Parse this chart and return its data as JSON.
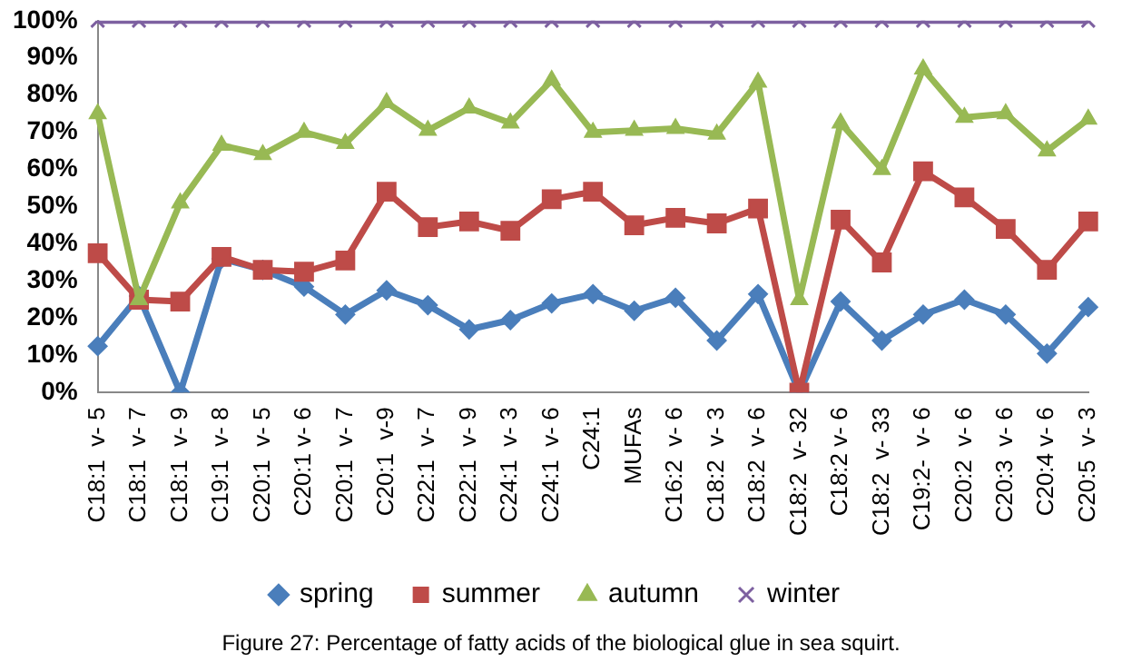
{
  "chart_data": {
    "type": "line",
    "title": "Figure 27: Percentage of fatty acids of the biological glue in sea squirt.",
    "categories": [
      "C18:1  v- 5",
      "C18:1  v- 7",
      "C18:1  v- 9",
      "C19:1  v- 8",
      "C20:1  v- 5",
      "C20:1 v- 6",
      "C20:1  v- 7",
      "C20:1  v-9",
      "C22:1  v- 7",
      "C22:1  v- 9",
      "C24:1  v- 3",
      "C24:1  v- 6",
      "C24:1",
      "MUFAs",
      "C16:2  v- 6",
      "C18:2  v- 3",
      "C18:2  v- 6",
      "C18:2  v- 32",
      "C18:2 v- 6",
      "C18:2  v- 33",
      "C19:2-  v- 6",
      "C20:2  v- 6",
      "C20:3  v- 6",
      "C20:4 v- 6",
      "C20:5  v- 3"
    ],
    "series": [
      {
        "name": "spring",
        "color": "#4a7ebb",
        "marker": "diamond",
        "values": [
          12.5,
          26,
          0,
          36,
          33,
          28.5,
          21,
          27.5,
          23.5,
          17,
          19.5,
          24,
          26.5,
          22,
          25.5,
          14,
          26.5,
          0,
          24.5,
          14,
          21,
          25,
          21,
          10.5,
          23
        ]
      },
      {
        "name": "summer",
        "color": "#be4b48",
        "marker": "square",
        "values": [
          37.5,
          25,
          24.5,
          36.5,
          33,
          32.5,
          35.5,
          54,
          44.5,
          46,
          43.5,
          52,
          54,
          45,
          47,
          45.5,
          49.5,
          0,
          46.5,
          35,
          59.5,
          52.5,
          44,
          33,
          46
        ]
      },
      {
        "name": "autumn",
        "color": "#98b954",
        "marker": "triangle",
        "values": [
          75,
          25,
          51,
          66.5,
          64,
          70,
          67,
          78,
          70.5,
          76.5,
          72.5,
          84,
          70,
          70.5,
          71,
          69.5,
          83.5,
          25,
          72.5,
          60,
          87,
          74,
          75,
          65,
          73.5
        ]
      },
      {
        "name": "winter",
        "color": "#7d60a0",
        "marker": "cross",
        "values": [
          100,
          100,
          100,
          100,
          100,
          100,
          100,
          100,
          100,
          100,
          100,
          100,
          100,
          100,
          100,
          100,
          100,
          100,
          100,
          100,
          100,
          100,
          100,
          100,
          100
        ]
      }
    ],
    "ylim": [
      0,
      100
    ],
    "yticks": [
      {
        "value": 0,
        "label": "0%"
      },
      {
        "value": 10,
        "label": "10%"
      },
      {
        "value": 20,
        "label": "20%"
      },
      {
        "value": 30,
        "label": "30%"
      },
      {
        "value": 40,
        "label": "40%"
      },
      {
        "value": 50,
        "label": "50%"
      },
      {
        "value": 60,
        "label": "60%"
      },
      {
        "value": 70,
        "label": "70%"
      },
      {
        "value": 80,
        "label": "80%"
      },
      {
        "value": 90,
        "label": "90%"
      },
      {
        "value": 100,
        "label": "100%"
      }
    ],
    "grid": false,
    "legend": "bottom",
    "line_style": "solid"
  }
}
